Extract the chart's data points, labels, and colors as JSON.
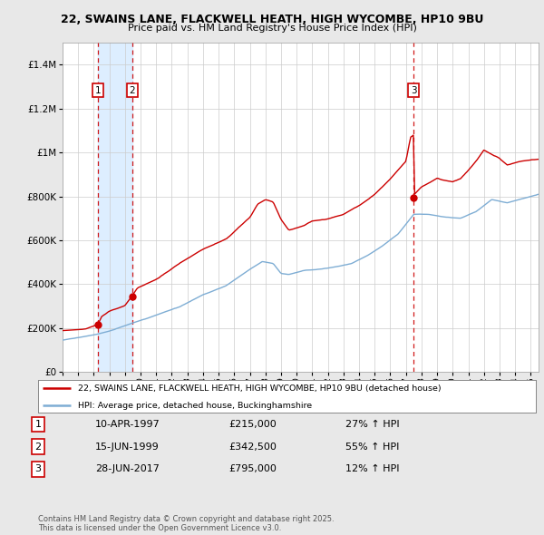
{
  "title1": "22, SWAINS LANE, FLACKWELL HEATH, HIGH WYCOMBE, HP10 9BU",
  "title2": "Price paid vs. HM Land Registry's House Price Index (HPI)",
  "background_color": "#e8e8e8",
  "plot_bg_color": "#ffffff",
  "hpi_color": "#7eadd4",
  "price_color": "#cc0000",
  "vline_color": "#cc0000",
  "shade_color": "#ddeeff",
  "ylim": [
    0,
    1500000
  ],
  "yticks": [
    0,
    200000,
    400000,
    600000,
    800000,
    1000000,
    1200000,
    1400000
  ],
  "ytick_labels": [
    "£0",
    "£200K",
    "£400K",
    "£600K",
    "£800K",
    "£1M",
    "£1.2M",
    "£1.4M"
  ],
  "legend1": "22, SWAINS LANE, FLACKWELL HEATH, HIGH WYCOMBE, HP10 9BU (detached house)",
  "legend2": "HPI: Average price, detached house, Buckinghamshire",
  "transactions": [
    {
      "num": 1,
      "date": "10-APR-1997",
      "year": 1997.27,
      "price": 215000,
      "pct": "27%",
      "dir": "↑"
    },
    {
      "num": 2,
      "date": "15-JUN-1999",
      "year": 1999.45,
      "price": 342500,
      "pct": "55%",
      "dir": "↑"
    },
    {
      "num": 3,
      "date": "28-JUN-2017",
      "year": 2017.49,
      "price": 795000,
      "pct": "12%",
      "dir": "↑"
    }
  ],
  "footer": "Contains HM Land Registry data © Crown copyright and database right 2025.\nThis data is licensed under the Open Government Licence v3.0.",
  "xmin": 1995.0,
  "xmax": 2025.5
}
